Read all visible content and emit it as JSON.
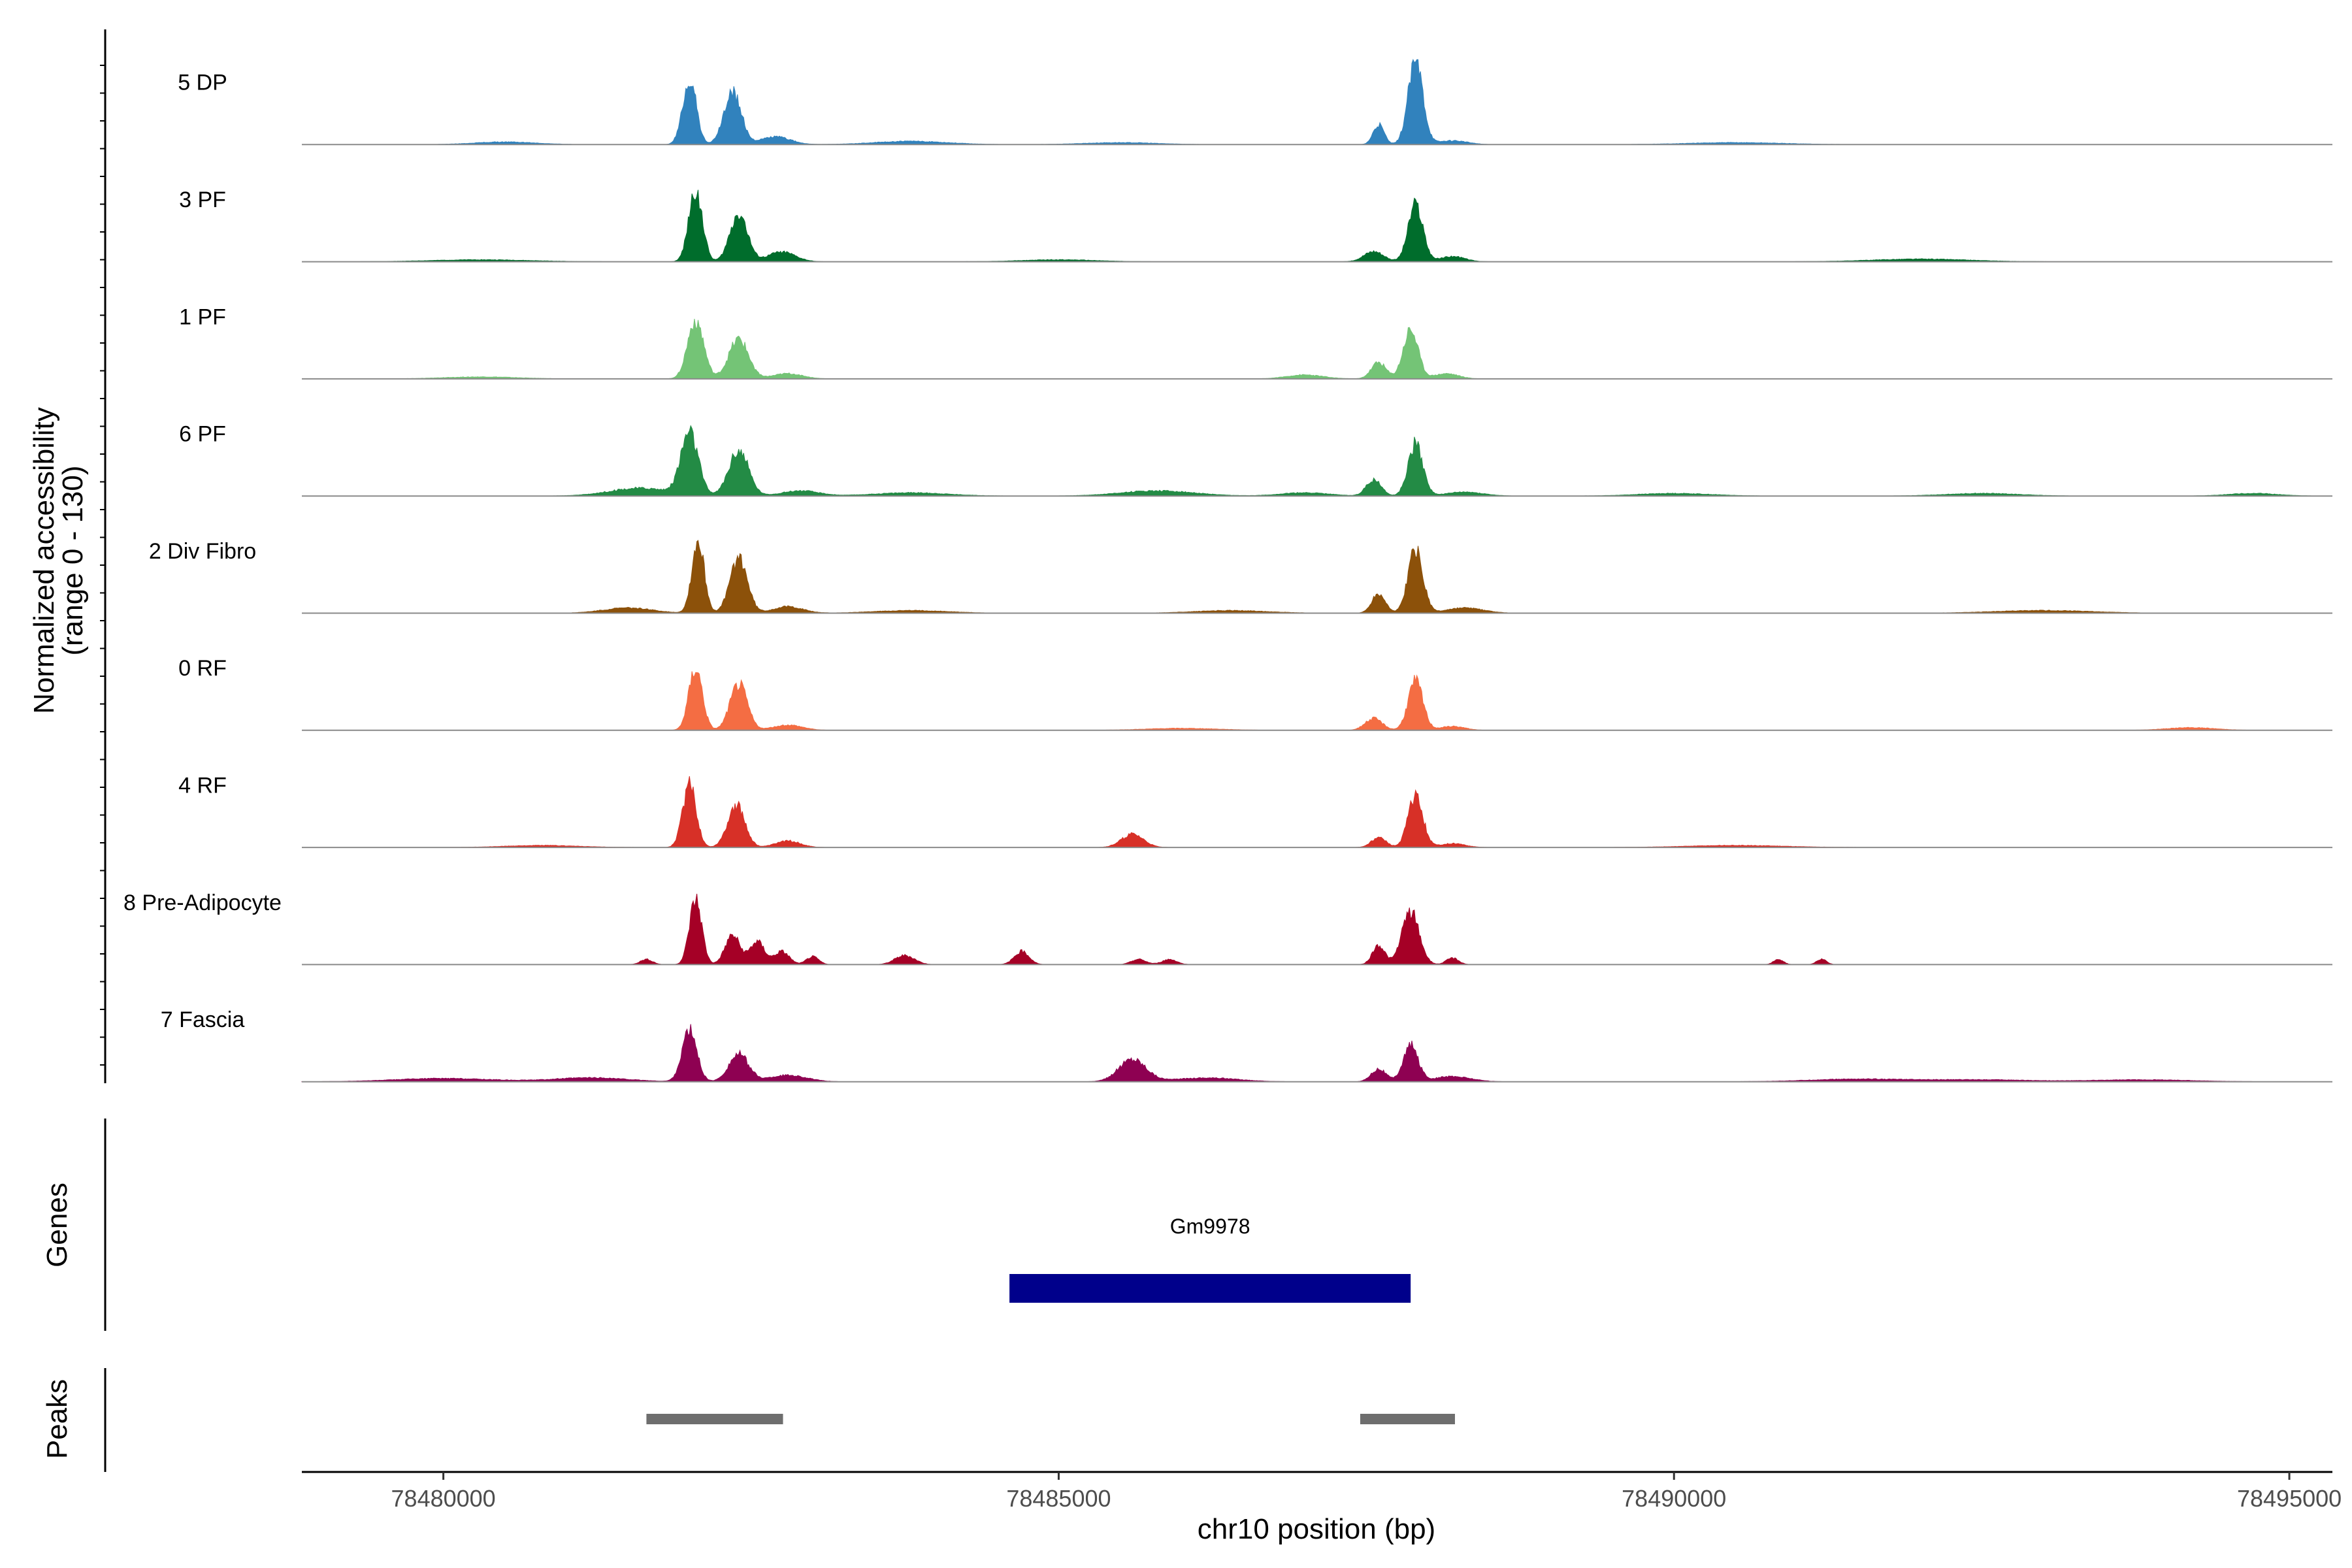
{
  "chart_data": {
    "type": "area",
    "xlabel": "chr10 position (bp)",
    "ylabel_line1": "Normalized accessibility",
    "ylabel_line2": "(range 0 - 130)",
    "y_range": [
      0,
      130
    ],
    "x_range": [
      78478850,
      78495350
    ],
    "x_ticks": [
      78480000,
      78485000,
      78490000,
      78495000
    ],
    "x_tick_labels": [
      "78480000",
      "78485000",
      "78490000",
      "78495000"
    ],
    "genes_label": "Genes",
    "peaks_label": "Peaks",
    "genes": [
      {
        "name": "Gm9978",
        "start": 78484600,
        "end": 78487860,
        "color": "#00008b"
      }
    ],
    "peaks": [
      {
        "start": 78481650,
        "end": 78482760
      },
      {
        "start": 78487450,
        "end": 78488220
      }
    ],
    "peak_color": "#6e6e6e",
    "tracks": [
      {
        "name": "5 DP",
        "color": "#3182bd",
        "peaks": [
          [
            78482000,
            100,
            55
          ],
          [
            78482350,
            80,
            70
          ],
          [
            78482700,
            12,
            120
          ],
          [
            78480500,
            4,
            250
          ],
          [
            78483800,
            5,
            300
          ],
          [
            78487600,
            30,
            45
          ],
          [
            78487900,
            128,
            60
          ],
          [
            78488200,
            6,
            120
          ],
          [
            78485500,
            3,
            300
          ],
          [
            78490500,
            3,
            400
          ]
        ]
      },
      {
        "name": "3 PF",
        "color": "#006d2c",
        "peaks": [
          [
            78482050,
            110,
            55
          ],
          [
            78482400,
            75,
            70
          ],
          [
            78482750,
            15,
            110
          ],
          [
            78487560,
            16,
            80
          ],
          [
            78487900,
            86,
            60
          ],
          [
            78488200,
            8,
            100
          ],
          [
            78480300,
            3,
            400
          ],
          [
            78485000,
            3,
            300
          ],
          [
            78492000,
            4,
            400
          ]
        ]
      },
      {
        "name": "1 PF",
        "color": "#74c476",
        "peaks": [
          [
            78482050,
            90,
            65
          ],
          [
            78482400,
            60,
            80
          ],
          [
            78482800,
            8,
            120
          ],
          [
            78487600,
            25,
            60
          ],
          [
            78487860,
            75,
            60
          ],
          [
            78488150,
            8,
            100
          ],
          [
            78487000,
            6,
            150
          ],
          [
            78480300,
            3,
            300
          ]
        ]
      },
      {
        "name": "6 PF",
        "color": "#238b45",
        "peaks": [
          [
            78482000,
            95,
            70
          ],
          [
            78482400,
            70,
            80
          ],
          [
            78482900,
            8,
            150
          ],
          [
            78481600,
            12,
            250
          ],
          [
            78487560,
            25,
            60
          ],
          [
            78487900,
            80,
            60
          ],
          [
            78488300,
            6,
            150
          ],
          [
            78485800,
            8,
            300
          ],
          [
            78487000,
            5,
            200
          ],
          [
            78490000,
            4,
            300
          ],
          [
            78492500,
            4,
            300
          ],
          [
            78494700,
            4,
            200
          ],
          [
            78483800,
            5,
            300
          ]
        ]
      },
      {
        "name": "2 Div Fibro",
        "color": "#8c510a",
        "peaks": [
          [
            78482070,
            110,
            50
          ],
          [
            78482400,
            85,
            70
          ],
          [
            78482800,
            10,
            120
          ],
          [
            78481500,
            8,
            200
          ],
          [
            78487600,
            30,
            55
          ],
          [
            78487900,
            98,
            60
          ],
          [
            78488300,
            8,
            150
          ],
          [
            78483800,
            4,
            300
          ],
          [
            78486400,
            4,
            300
          ],
          [
            78493000,
            4,
            400
          ]
        ]
      },
      {
        "name": "0 RF",
        "color": "#f46d43",
        "peaks": [
          [
            78482050,
            95,
            55
          ],
          [
            78482400,
            70,
            70
          ],
          [
            78482800,
            8,
            120
          ],
          [
            78487560,
            18,
            70
          ],
          [
            78487900,
            75,
            60
          ],
          [
            78488200,
            6,
            100
          ],
          [
            78494200,
            4,
            200
          ],
          [
            78486000,
            3,
            300
          ]
        ]
      },
      {
        "name": "4 RF",
        "color": "#d73027",
        "peaks": [
          [
            78482000,
            95,
            55
          ],
          [
            78482380,
            65,
            70
          ],
          [
            78482800,
            10,
            100
          ],
          [
            78485600,
            20,
            90
          ],
          [
            78487600,
            15,
            60
          ],
          [
            78487900,
            78,
            60
          ],
          [
            78488200,
            6,
            100
          ],
          [
            78480800,
            3,
            300
          ],
          [
            78490500,
            3,
            400
          ]
        ]
      },
      {
        "name": "8 Pre-Adipocyte",
        "color": "#a50026",
        "peaks": [
          [
            78481650,
            8,
            50
          ],
          [
            78482050,
            100,
            50
          ],
          [
            78482350,
            45,
            60
          ],
          [
            78482550,
            35,
            60
          ],
          [
            78482750,
            20,
            60
          ],
          [
            78483000,
            12,
            50
          ],
          [
            78483750,
            14,
            80
          ],
          [
            78484700,
            20,
            60
          ],
          [
            78485650,
            8,
            60
          ],
          [
            78485900,
            8,
            60
          ],
          [
            78487600,
            30,
            50
          ],
          [
            78487860,
            80,
            70
          ],
          [
            78488200,
            10,
            50
          ],
          [
            78490850,
            8,
            40
          ],
          [
            78491200,
            8,
            40
          ]
        ]
      },
      {
        "name": "7 Fascia",
        "color": "#8e0152",
        "peaks": [
          [
            78482000,
            78,
            60
          ],
          [
            78482400,
            42,
            80
          ],
          [
            78482800,
            10,
            150
          ],
          [
            78481200,
            6,
            300
          ],
          [
            78485600,
            35,
            110
          ],
          [
            78486200,
            6,
            250
          ],
          [
            78487600,
            20,
            60
          ],
          [
            78487860,
            55,
            60
          ],
          [
            78488200,
            8,
            150
          ],
          [
            78480000,
            5,
            400
          ],
          [
            78491500,
            4,
            400
          ],
          [
            78492500,
            3,
            400
          ],
          [
            78493800,
            3,
            400
          ]
        ]
      }
    ]
  }
}
